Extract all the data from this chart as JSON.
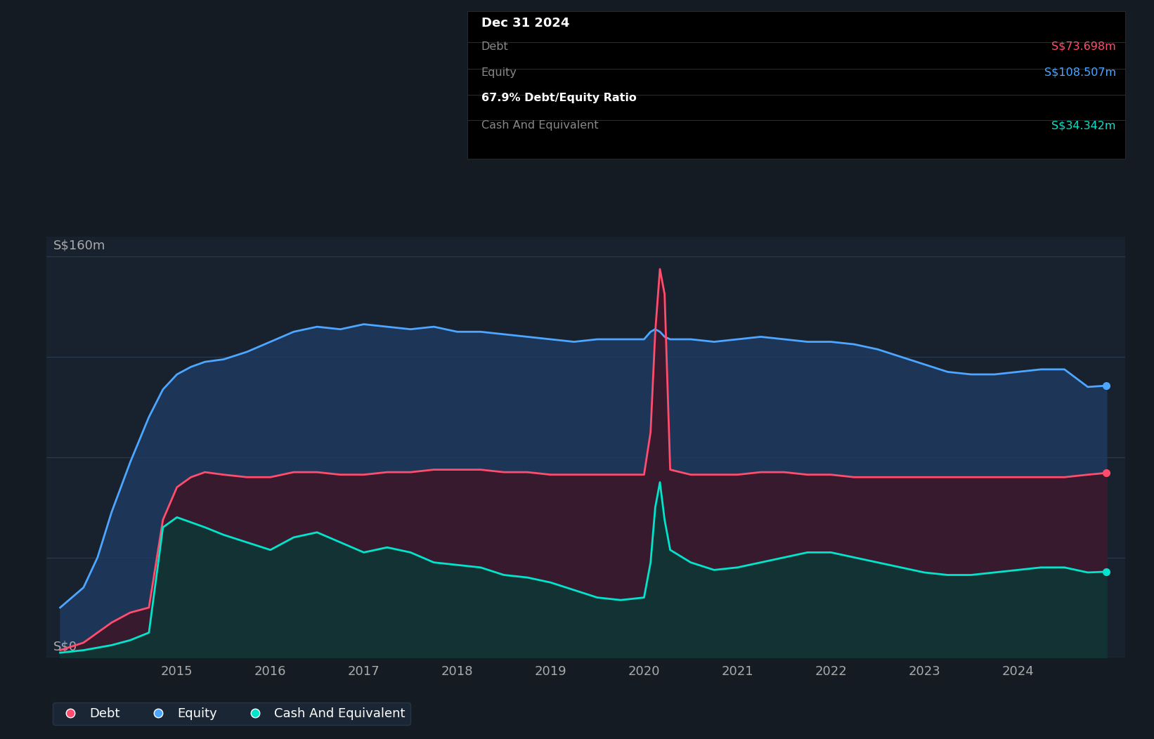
{
  "bg_color": "#141B22",
  "plot_bg_color": "#18222e",
  "debt_color": "#ff4d6d",
  "equity_color": "#4da6ff",
  "cash_color": "#00e5cc",
  "ylabel_top": "S$160m",
  "ylabel_bottom": "S$0",
  "x_labels": [
    "2015",
    "2016",
    "2017",
    "2018",
    "2019",
    "2020",
    "2021",
    "2022",
    "2023",
    "2024"
  ],
  "x_tick_positions": [
    2015,
    2016,
    2017,
    2018,
    2019,
    2020,
    2021,
    2022,
    2023,
    2024
  ],
  "tooltip_title": "Dec 31 2024",
  "tooltip_debt_label": "Debt",
  "tooltip_debt_value": "S$73.698m",
  "tooltip_equity_label": "Equity",
  "tooltip_equity_value": "S$108.507m",
  "tooltip_ratio": "67.9% Debt/Equity Ratio",
  "tooltip_cash_label": "Cash And Equivalent",
  "tooltip_cash_value": "S$34.342m",
  "legend_debt": "Debt",
  "legend_equity": "Equity",
  "legend_cash": "Cash And Equivalent",
  "years": [
    2013.75,
    2014.0,
    2014.15,
    2014.3,
    2014.5,
    2014.7,
    2014.85,
    2015.0,
    2015.15,
    2015.3,
    2015.5,
    2015.75,
    2016.0,
    2016.25,
    2016.5,
    2016.75,
    2017.0,
    2017.25,
    2017.5,
    2017.75,
    2018.0,
    2018.25,
    2018.5,
    2018.75,
    2019.0,
    2019.25,
    2019.5,
    2019.75,
    2020.0,
    2020.07,
    2020.12,
    2020.17,
    2020.22,
    2020.28,
    2020.5,
    2020.75,
    2021.0,
    2021.25,
    2021.5,
    2021.75,
    2022.0,
    2022.25,
    2022.5,
    2022.75,
    2023.0,
    2023.25,
    2023.5,
    2023.75,
    2024.0,
    2024.25,
    2024.5,
    2024.75,
    2024.95
  ],
  "equity": [
    20,
    28,
    40,
    58,
    78,
    96,
    107,
    113,
    116,
    118,
    119,
    122,
    126,
    130,
    132,
    131,
    133,
    132,
    131,
    132,
    130,
    130,
    129,
    128,
    127,
    126,
    127,
    127,
    127,
    130,
    131,
    130,
    128,
    127,
    127,
    126,
    127,
    128,
    127,
    126,
    126,
    125,
    123,
    120,
    117,
    114,
    113,
    113,
    114,
    115,
    115,
    108,
    108.5
  ],
  "debt": [
    3,
    6,
    10,
    14,
    18,
    20,
    55,
    68,
    72,
    74,
    73,
    72,
    72,
    74,
    74,
    73,
    73,
    74,
    74,
    75,
    75,
    75,
    74,
    74,
    73,
    73,
    73,
    73,
    73,
    90,
    130,
    155,
    145,
    75,
    73,
    73,
    73,
    74,
    74,
    73,
    73,
    72,
    72,
    72,
    72,
    72,
    72,
    72,
    72,
    72,
    72,
    73,
    73.7
  ],
  "cash": [
    2,
    3,
    4,
    5,
    7,
    10,
    52,
    56,
    54,
    52,
    49,
    46,
    43,
    48,
    50,
    46,
    42,
    44,
    42,
    38,
    37,
    36,
    33,
    32,
    30,
    27,
    24,
    23,
    24,
    38,
    60,
    70,
    55,
    43,
    38,
    35,
    36,
    38,
    40,
    42,
    42,
    40,
    38,
    36,
    34,
    33,
    33,
    34,
    35,
    36,
    36,
    34,
    34.3
  ]
}
